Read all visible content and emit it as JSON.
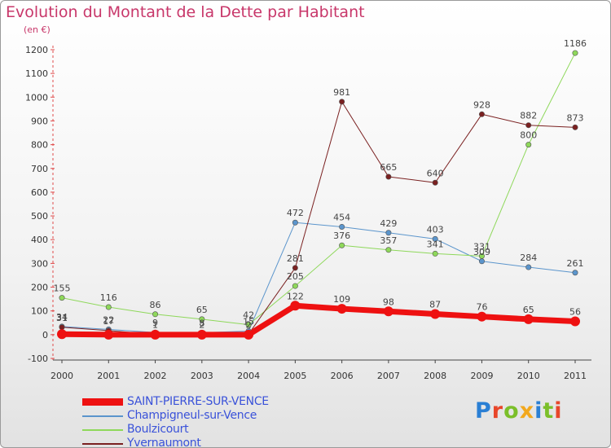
{
  "title": "Evolution du Montant de la Dette par Habitant",
  "unit": "(en €)",
  "logo": {
    "letters": [
      "P",
      "r",
      "o",
      "x",
      "i",
      "t",
      "i"
    ],
    "colors": [
      "#2a7fd4",
      "#e8462a",
      "#7bbf2a",
      "#f2a81d",
      "#2a7fd4",
      "#7bbf2a",
      "#e8462a"
    ]
  },
  "chart_data": {
    "type": "line",
    "x": [
      2000,
      2001,
      2002,
      2003,
      2004,
      2005,
      2006,
      2007,
      2008,
      2009,
      2010,
      2011
    ],
    "ylim": [
      -100,
      1200
    ],
    "yticks": [
      -100,
      0,
      100,
      200,
      300,
      400,
      500,
      600,
      700,
      800,
      900,
      1000,
      1100,
      1200
    ],
    "grid": false,
    "legend_position": "bottom-left",
    "series": [
      {
        "name": "SAINT-PIERRE-SUR-VENCE",
        "color": "#ee1111",
        "width": 7,
        "values": [
          2,
          0,
          0,
          0,
          0,
          122,
          109,
          98,
          87,
          76,
          65,
          56
        ],
        "labels": [
          "",
          "",
          "",
          "",
          "",
          "122",
          "109",
          "98",
          "87",
          "76",
          "65",
          "56"
        ]
      },
      {
        "name": "Champigneul-sur-Vence",
        "color": "#5b95cc",
        "width": 1,
        "values": [
          34,
          22,
          9,
          8,
          15,
          472,
          454,
          429,
          403,
          309,
          284,
          261
        ],
        "labels": [
          "34",
          "22",
          "9",
          "8",
          "15",
          "472",
          "454",
          "429",
          "403",
          "309",
          "284",
          "261"
        ]
      },
      {
        "name": "Boulzicourt",
        "color": "#8ed85a",
        "width": 1,
        "values": [
          155,
          116,
          86,
          65,
          42,
          205,
          376,
          357,
          341,
          331,
          800,
          1186
        ],
        "labels": [
          "155",
          "116",
          "86",
          "65",
          "42",
          "205",
          "376",
          "357",
          "341",
          "331",
          "800",
          "1186"
        ]
      },
      {
        "name": "Yvernaumont",
        "color": "#7a2020",
        "width": 1,
        "values": [
          31,
          17,
          1,
          2,
          2,
          281,
          981,
          665,
          640,
          928,
          882,
          873
        ],
        "labels": [
          "31",
          "17",
          "1",
          "2",
          "2",
          "281",
          "981",
          "665",
          "640",
          "928",
          "882",
          "873"
        ]
      }
    ]
  }
}
